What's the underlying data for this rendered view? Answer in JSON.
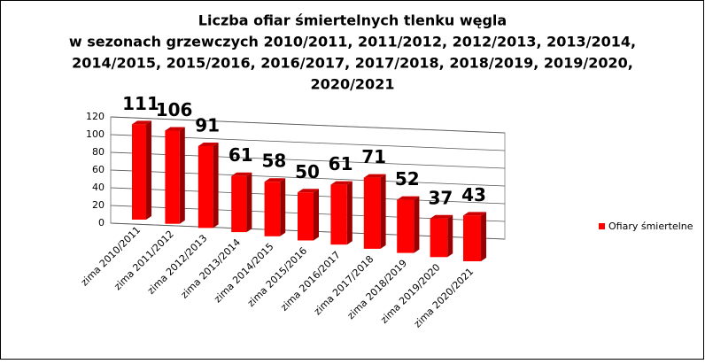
{
  "chart_data": {
    "type": "bar3d",
    "title": [
      "Liczba ofiar śmiertelnych tlenku węgla",
      "w sezonach grzewczych 2010/2011, 2011/2012, 2012/2013, 2013/2014,",
      "2014/2015, 2015/2016, 2016/2017, 2017/2018, 2018/2019, 2019/2020,",
      "2020/2021"
    ],
    "categories": [
      "zima 2010/2011",
      "zima 2011/2012",
      "zima 2012/2013",
      "zima 2013/2014",
      "zima 2014/2015",
      "zima 2015/2016",
      "zima 2016/2017",
      "zima 2017/2018",
      "zima 2018/2019",
      "zima 2019/2020",
      "zima 2020/2021"
    ],
    "series": [
      {
        "name": "Ofiary śmiertelne",
        "color": "#ff0000",
        "values": [
          111,
          106,
          91,
          61,
          58,
          50,
          61,
          71,
          52,
          37,
          43
        ]
      }
    ],
    "ylim": [
      0,
      120
    ],
    "yticks": [
      0,
      20,
      40,
      60,
      80,
      100,
      120
    ],
    "grid": true,
    "legend": "right"
  }
}
